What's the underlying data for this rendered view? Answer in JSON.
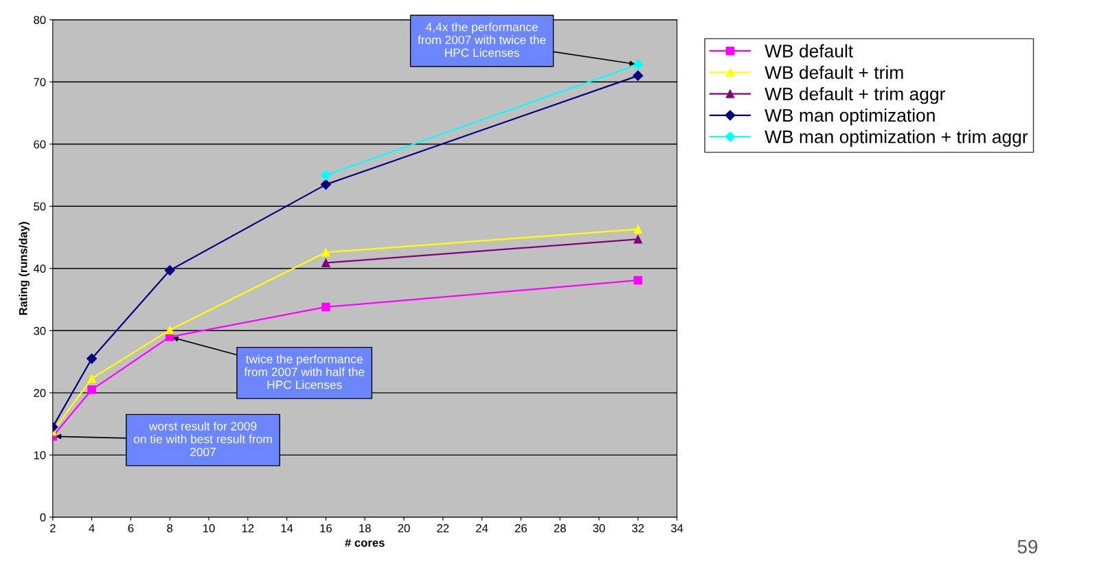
{
  "chart_data": {
    "type": "line",
    "xlabel": "# cores",
    "ylabel": "Rating (runs/day)",
    "xlim": [
      2,
      34
    ],
    "xticks": [
      2,
      4,
      6,
      8,
      10,
      12,
      14,
      16,
      18,
      20,
      22,
      24,
      26,
      28,
      30,
      32,
      34
    ],
    "ylim": [
      0,
      80
    ],
    "yticks": [
      0,
      10,
      20,
      30,
      40,
      50,
      60,
      70,
      80
    ],
    "grid": "y",
    "legend": "right",
    "line_style": "solid",
    "series": [
      {
        "name": "WB default",
        "color": "#ff00ff",
        "marker": "square",
        "x": [
          2,
          4,
          8,
          16,
          32
        ],
        "values": [
          13,
          20.5,
          29,
          33.8,
          38.1
        ]
      },
      {
        "name": "WB default + trim",
        "color": "#ffff00",
        "marker": "triangle",
        "x": [
          2,
          4,
          8,
          16,
          32
        ],
        "values": [
          13.8,
          22.3,
          30.1,
          42.6,
          46.3
        ]
      },
      {
        "name": "WB default + trim aggr",
        "color": "#800080",
        "marker": "triangle",
        "x": [
          16,
          32
        ],
        "values": [
          40.9,
          44.7
        ]
      },
      {
        "name": "WB man optimization",
        "color": "#000080",
        "marker": "diamond",
        "x": [
          2,
          4,
          8,
          16,
          32
        ],
        "values": [
          14.5,
          25.5,
          39.7,
          53.5,
          71
        ]
      },
      {
        "name": "WB man optimization + trim aggr",
        "color": "#00ffff",
        "marker": "diamond",
        "x": [
          16,
          32
        ],
        "values": [
          55,
          72.8
        ]
      }
    ],
    "annotations": [
      {
        "text": "4,4x the performance\nfrom 2007 with twice the\nHPC Licenses",
        "x": 32,
        "y": 72.8
      },
      {
        "text": "twice the performance\nfrom 2007 with half the\nHPC Licenses",
        "x": 8,
        "y": 29
      },
      {
        "text": "worst result for 2009\non tie with best result from\n2007",
        "x": 2,
        "y": 13
      },
      "59"
    ]
  }
}
